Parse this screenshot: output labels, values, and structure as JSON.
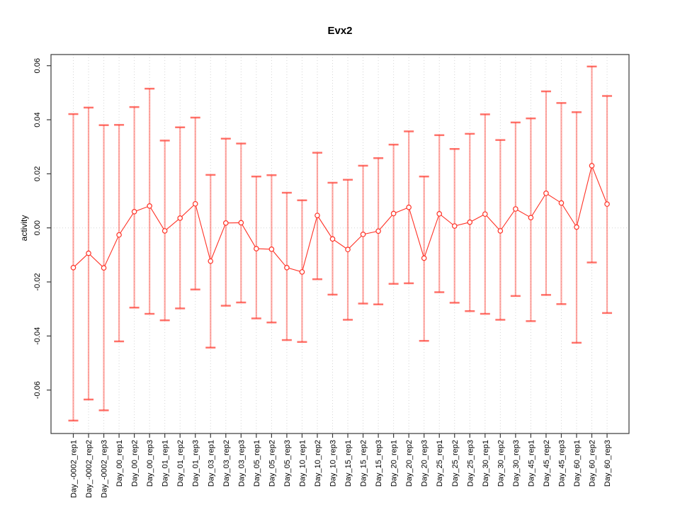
{
  "chart_data": {
    "type": "scatter",
    "title": "Evx2",
    "xlabel": "",
    "ylabel": "activity",
    "legend": "none",
    "grid": "vertical dotted gridline per category, dotted horizontal line at y=0",
    "point_style": "open red circles connected by red line, semi-transparent red error bars with caps",
    "colors": {
      "point": "#ff3226",
      "line": "#ff3226",
      "errorbar": "rgba(255,60,48,0.45)",
      "errorbar_cap": "rgba(255,60,48,0.72)",
      "gridline": "#d4d4d4",
      "axis": "#3a3a3a",
      "text": "#000000"
    },
    "ylim": [
      -0.076,
      0.064
    ],
    "y_ticks": [
      0.06,
      0.04,
      0.02,
      0.0,
      -0.02,
      -0.04,
      -0.06
    ],
    "categories": [
      "Day_-0002_rep1",
      "Day_-0002_rep2",
      "Day_-0002_rep3",
      "Day_00_rep1",
      "Day_00_rep2",
      "Day_00_rep3",
      "Day_01_rep1",
      "Day_01_rep2",
      "Day_01_rep3",
      "Day_03_rep1",
      "Day_03_rep2",
      "Day_03_rep3",
      "Day_05_rep1",
      "Day_05_rep2",
      "Day_05_rep3",
      "Day_10_rep1",
      "Day_10_rep2",
      "Day_10_rep3",
      "Day_15_rep1",
      "Day_15_rep2",
      "Day_15_rep3",
      "Day_20_rep1",
      "Day_20_rep2",
      "Day_20_rep3",
      "Day_25_rep1",
      "Day_25_rep2",
      "Day_25_rep3",
      "Day_30_rep1",
      "Day_30_rep2",
      "Day_30_rep3",
      "Day_45_rep1",
      "Day_45_rep2",
      "Day_45_rep3",
      "Day_60_rep1",
      "Day_60_rep2",
      "Day_60_rep3"
    ],
    "series": [
      {
        "name": "activity",
        "values": [
          -0.0147,
          -0.0094,
          -0.0148,
          -0.0026,
          0.006,
          0.0081,
          -0.0011,
          0.0036,
          0.0089,
          -0.0123,
          0.0018,
          0.0019,
          -0.0077,
          -0.0079,
          -0.0147,
          -0.0163,
          0.0046,
          -0.0041,
          -0.008,
          -0.0024,
          -0.0012,
          0.0053,
          0.0076,
          -0.0112,
          0.0052,
          0.0007,
          0.0021,
          0.0051,
          -0.0011,
          0.007,
          0.0038,
          0.0128,
          0.0092,
          0.0003,
          0.023,
          0.0088
        ],
        "upper": [
          0.0421,
          0.0445,
          0.038,
          0.0381,
          0.0447,
          0.0515,
          0.0323,
          0.0372,
          0.0408,
          0.0196,
          0.033,
          0.0312,
          0.019,
          0.0195,
          0.013,
          0.0102,
          0.0278,
          0.0167,
          0.0178,
          0.023,
          0.0258,
          0.0308,
          0.0357,
          0.019,
          0.0343,
          0.0292,
          0.0348,
          0.042,
          0.0325,
          0.039,
          0.0405,
          0.0505,
          0.0462,
          0.0428,
          0.0597,
          0.0488
        ],
        "lower": [
          -0.0713,
          -0.0635,
          -0.0675,
          -0.042,
          -0.0295,
          -0.0318,
          -0.0342,
          -0.0298,
          -0.0228,
          -0.0443,
          -0.0288,
          -0.0276,
          -0.0335,
          -0.035,
          -0.0415,
          -0.0422,
          -0.019,
          -0.0247,
          -0.034,
          -0.028,
          -0.0283,
          -0.0207,
          -0.0205,
          -0.0418,
          -0.0238,
          -0.0277,
          -0.0308,
          -0.0318,
          -0.034,
          -0.0252,
          -0.0345,
          -0.0248,
          -0.0282,
          -0.0425,
          -0.0128,
          -0.0315
        ]
      }
    ]
  }
}
